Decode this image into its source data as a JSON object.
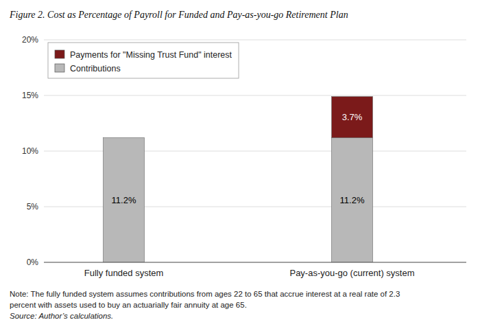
{
  "chart_data": {
    "type": "bar",
    "stacked": true,
    "title": "Figure 2. Cost as Percentage of Payroll for Funded and Pay-as-you-go Retirement Plan",
    "categories": [
      "Fully funded system",
      "Pay-as-you-go (current) system"
    ],
    "series": [
      {
        "name": "Contributions",
        "color": "#b8b8b8",
        "values": [
          11.2,
          11.2
        ],
        "value_labels": [
          "11.2%",
          "11.2%"
        ]
      },
      {
        "name": "Payments for \"Missing Trust Fund\" interest",
        "color": "#7b1a1a",
        "values": [
          0.0,
          3.7
        ],
        "value_labels": [
          null,
          "3.7%"
        ]
      }
    ],
    "data_labels": true,
    "ylim": [
      0,
      20
    ],
    "yticks": [
      {
        "value": 0,
        "label": "0%"
      },
      {
        "value": 5,
        "label": "5%"
      },
      {
        "value": 10,
        "label": "10%"
      },
      {
        "value": 15,
        "label": "15%"
      },
      {
        "value": 20,
        "label": "20%"
      }
    ],
    "grid": true,
    "legend": "upper left",
    "annotations": [
      "Note: The fully funded system assumes contributions from ages 22 to 65 that accrue interest at a real rate of 2.3",
      "percent with assets used to buy an actuarially fair annuity at age 65.",
      "Source: Author’s calculations."
    ]
  }
}
